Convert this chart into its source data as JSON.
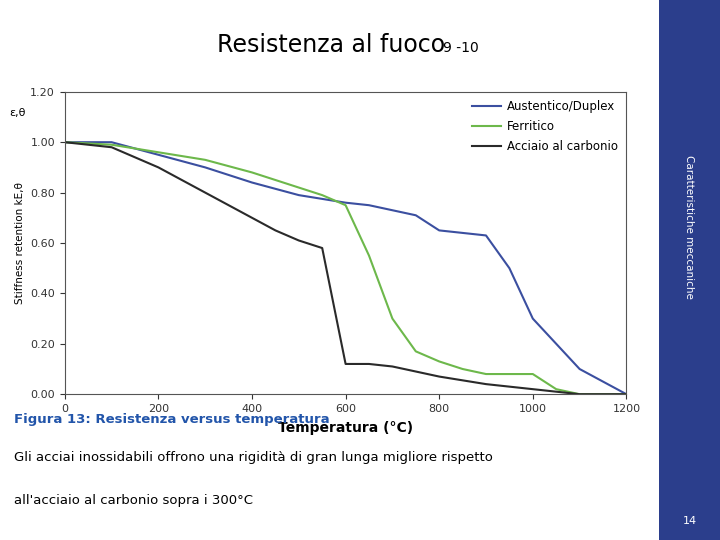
{
  "title": "Resistenza al fuoco",
  "title_superscript": "9 -10",
  "xlabel": "Temperatura (°C)",
  "ylabel": "Stiffness retention kE,θ",
  "ylabel2": "ε,θ",
  "xlim": [
    0,
    1200
  ],
  "ylim": [
    0.0,
    1.2
  ],
  "xticks": [
    0,
    200,
    400,
    600,
    800,
    1000,
    1200
  ],
  "yticks": [
    0.0,
    0.2,
    0.4,
    0.6,
    0.8,
    1.0,
    1.2
  ],
  "legend_labels": [
    "Austentico/Duplex",
    "Ferritico",
    "Acciaio al carbonio"
  ],
  "line_colors": [
    "#3B4FA0",
    "#6DB84B",
    "#2A2A2A"
  ],
  "austentico_duplex_x": [
    0,
    100,
    200,
    300,
    400,
    500,
    600,
    650,
    700,
    750,
    800,
    850,
    900,
    950,
    1000,
    1050,
    1100,
    1150,
    1200
  ],
  "austentico_duplex_y": [
    1.0,
    1.0,
    0.95,
    0.9,
    0.84,
    0.79,
    0.76,
    0.75,
    0.73,
    0.71,
    0.65,
    0.64,
    0.63,
    0.5,
    0.3,
    0.2,
    0.1,
    0.05,
    0.0
  ],
  "ferritico_x": [
    0,
    100,
    200,
    300,
    400,
    500,
    550,
    600,
    650,
    700,
    750,
    800,
    850,
    900,
    950,
    1000,
    1050,
    1100,
    1200
  ],
  "ferritico_y": [
    1.0,
    0.99,
    0.96,
    0.93,
    0.88,
    0.82,
    0.79,
    0.75,
    0.55,
    0.3,
    0.17,
    0.13,
    0.1,
    0.08,
    0.08,
    0.08,
    0.02,
    0.0,
    0.0
  ],
  "carbonio_x": [
    0,
    100,
    200,
    300,
    400,
    450,
    500,
    550,
    600,
    650,
    700,
    800,
    900,
    1000,
    1100,
    1200
  ],
  "carbonio_y": [
    1.0,
    0.98,
    0.9,
    0.8,
    0.7,
    0.65,
    0.61,
    0.58,
    0.12,
    0.12,
    0.11,
    0.07,
    0.04,
    0.02,
    0.0,
    0.0
  ],
  "figure_caption": "Figura 13: Resistenza versus temperatura",
  "figure_text1": "Gli acciai inossidabili offrono una rigidità di gran lunga migliore rispetto",
  "figure_text2": "all'acciaio al carbonio sopra i 300°C",
  "background_color": "#FFFFFF",
  "sidebar_color": "#2B3E8C",
  "sidebar_text": "Caratteristiche meccaniche",
  "caption_color": "#2255AA"
}
